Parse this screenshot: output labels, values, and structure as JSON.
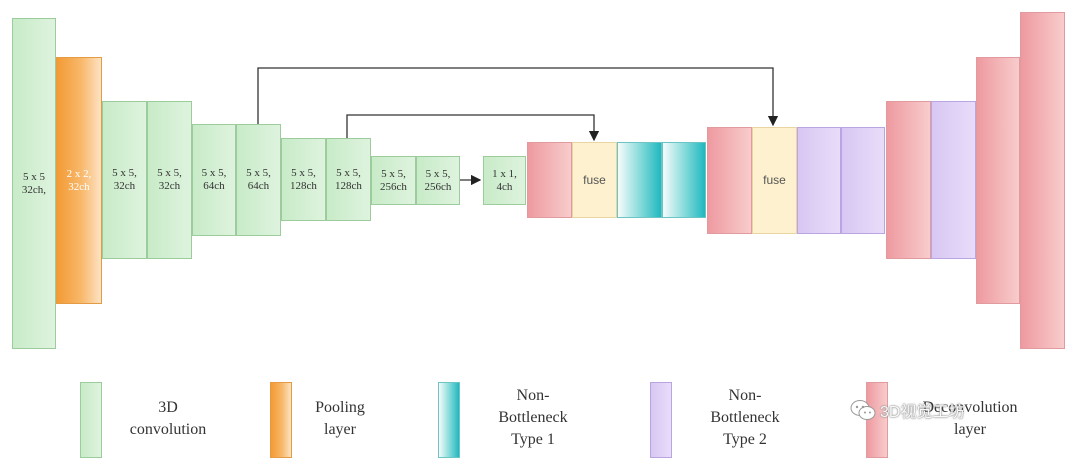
{
  "blocks": [
    {
      "type": "conv",
      "label": "5 x 5\n32ch,"
    },
    {
      "type": "pool",
      "label": "2 x 2,\n32ch"
    },
    {
      "type": "conv",
      "label": "5 x 5,\n32ch"
    },
    {
      "type": "conv",
      "label": "5 x 5,\n32ch"
    },
    {
      "type": "conv",
      "label": "5 x 5,\n64ch"
    },
    {
      "type": "conv",
      "label": "5 x 5,\n64ch"
    },
    {
      "type": "conv",
      "label": "5 x 5,\n128ch"
    },
    {
      "type": "conv",
      "label": "5 x 5,\n128ch"
    },
    {
      "type": "conv",
      "label": "5 x 5,\n256ch"
    },
    {
      "type": "conv",
      "label": "5 x 5,\n256ch"
    },
    {
      "type": "conv",
      "label": "1 x 1,\n4ch"
    },
    {
      "type": "dec",
      "label": ""
    },
    {
      "type": "fuse",
      "label": "fuse"
    },
    {
      "type": "nb1",
      "label": ""
    },
    {
      "type": "nb1",
      "label": ""
    },
    {
      "type": "dec",
      "label": ""
    },
    {
      "type": "fuse",
      "label": "fuse"
    },
    {
      "type": "nb2",
      "label": ""
    },
    {
      "type": "nb2",
      "label": ""
    },
    {
      "type": "dec",
      "label": ""
    },
    {
      "type": "nb2",
      "label": ""
    },
    {
      "type": "dec",
      "label": ""
    },
    {
      "type": "dec",
      "label": ""
    }
  ],
  "legend": [
    {
      "type": "conv",
      "label": "3D\nconvolution"
    },
    {
      "type": "pool",
      "label": "Pooling\nlayer"
    },
    {
      "type": "nb1",
      "label": "Non-\nBottleneck\nType 1"
    },
    {
      "type": "nb2",
      "label": "Non-\nBottleneck\nType 2"
    },
    {
      "type": "dec",
      "label": "Deconvolution\nlayer"
    }
  ],
  "watermark": {
    "icon": "wechat-icon",
    "text": "3D视觉工坊"
  }
}
